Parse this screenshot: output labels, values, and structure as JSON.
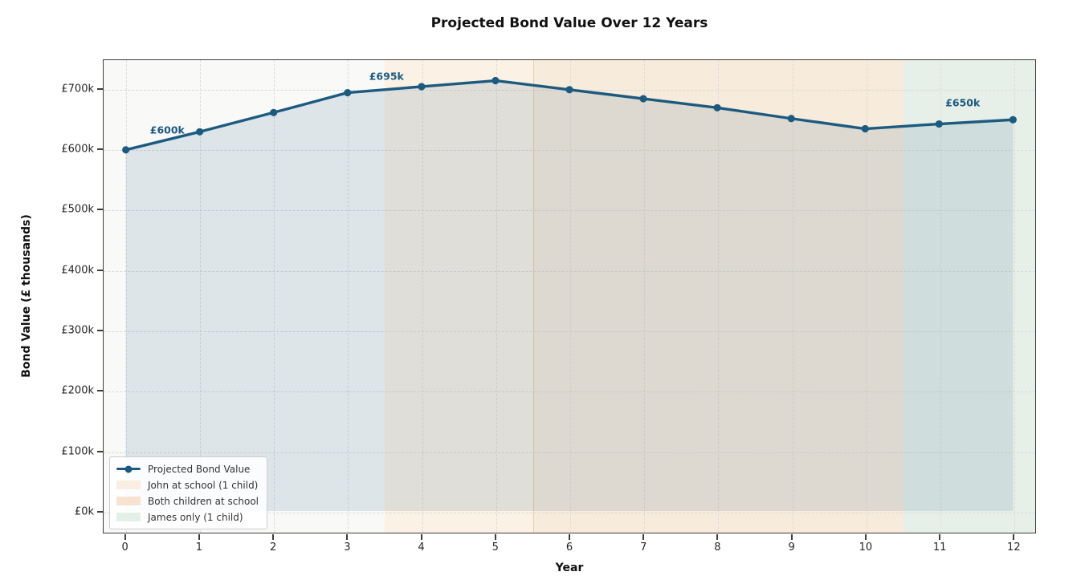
{
  "colors": {
    "accent_line": "#1d5a80",
    "plot_background": "#f9f9f8",
    "grid": "#d9d9d9",
    "spine": "#3c3c3c",
    "area_fill": "rgba(31,90,128,0.12)"
  },
  "chart_data": {
    "type": "line",
    "title": "Projected Bond Value Over 12 Years",
    "xlabel": "Year",
    "ylabel": "Bond Value (£ thousands)",
    "x": [
      0,
      1,
      2,
      3,
      4,
      5,
      6,
      7,
      8,
      9,
      10,
      11,
      12
    ],
    "series": [
      {
        "name": "Projected Bond Value",
        "color": "#1d5a80",
        "marker": "circle",
        "values": [
          600,
          630,
          662,
          695,
          705,
          715,
          700,
          685,
          670,
          652,
          635,
          643,
          650
        ]
      }
    ],
    "area_fill": {
      "baseline_value": 0,
      "color": "rgba(31,90,128,0.12)"
    },
    "xlim": [
      -0.3,
      12.3
    ],
    "ylim": [
      -36,
      749
    ],
    "xticks": [
      {
        "value": 0,
        "label": "0"
      },
      {
        "value": 1,
        "label": "1"
      },
      {
        "value": 2,
        "label": "2"
      },
      {
        "value": 3,
        "label": "3"
      },
      {
        "value": 4,
        "label": "4"
      },
      {
        "value": 5,
        "label": "5"
      },
      {
        "value": 6,
        "label": "6"
      },
      {
        "value": 7,
        "label": "7"
      },
      {
        "value": 8,
        "label": "8"
      },
      {
        "value": 9,
        "label": "9"
      },
      {
        "value": 10,
        "label": "10"
      },
      {
        "value": 11,
        "label": "11"
      },
      {
        "value": 12,
        "label": "12"
      }
    ],
    "yticks": [
      {
        "value": 0,
        "label": "£0k"
      },
      {
        "value": 100,
        "label": "£100k"
      },
      {
        "value": 200,
        "label": "£200k"
      },
      {
        "value": 300,
        "label": "£300k"
      },
      {
        "value": 400,
        "label": "£400k"
      },
      {
        "value": 500,
        "label": "£500k"
      },
      {
        "value": 600,
        "label": "£600k"
      },
      {
        "value": 700,
        "label": "£700k"
      }
    ],
    "grid": {
      "show": true,
      "style": "dashed"
    },
    "regions": [
      {
        "label": "John at school (1 child)",
        "from": 3.5,
        "to": 5.5,
        "color": "#fbf1e5",
        "swatch": "#faeee2",
        "left_edge": "none"
      },
      {
        "label": "Both children at school",
        "from": 5.5,
        "to": 10.5,
        "color": "#f7ebdc",
        "swatch": "#f8e3d3",
        "left_edge": "rgba(226,164,112,0.45)"
      },
      {
        "label": "James only (1 child)",
        "from": 10.5,
        "to": 12.3,
        "color": "#e7efe9",
        "swatch": "#e3f0e7",
        "left_edge": "none"
      }
    ],
    "annotations": [
      {
        "label": "£600k",
        "year": 0.56,
        "value": 633
      },
      {
        "label": "£695k",
        "year": 3.52,
        "value": 722
      },
      {
        "label": "£650k",
        "year": 11.3,
        "value": 679
      }
    ],
    "legend": {
      "position": "lower-left",
      "entries": [
        "Projected Bond Value",
        "John at school (1 child)",
        "Both children at school",
        "James only (1 child)"
      ]
    }
  }
}
